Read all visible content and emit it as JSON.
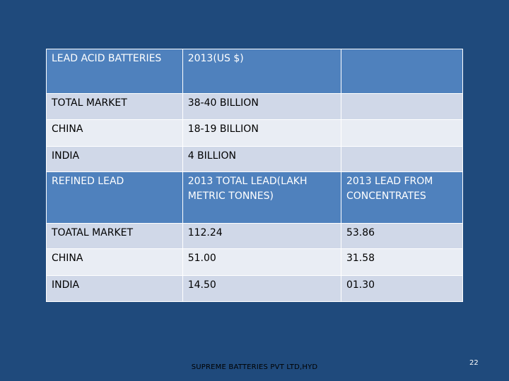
{
  "table": {
    "rows": [
      [
        "LEAD ACID BATTERIES",
        "2013(US $)",
        ""
      ],
      [
        "TOTAL MARKET",
        "38-40 BILLION",
        ""
      ],
      [
        "CHINA",
        "18-19 BILLION",
        ""
      ],
      [
        "INDIA",
        "4 BILLION",
        ""
      ],
      [
        "REFINED LEAD",
        "2013 TOTAL LEAD(LAKH METRIC TONNES)",
        "2013 LEAD FROM CONCENTRATES"
      ],
      [
        "TOATAL MARKET",
        "112.24",
        "53.86"
      ],
      [
        "CHINA",
        "51.00",
        "31.58"
      ],
      [
        "INDIA",
        "14.50",
        "01.30"
      ]
    ]
  },
  "footer": {
    "company": "SUPREME BATTERIES PVT LTD,HYD",
    "page_number": "22"
  },
  "colors": {
    "background": "#1f4a7c",
    "header_row": "#4f81bd",
    "band_dark": "#d0d8e8",
    "band_light": "#e9edf4"
  }
}
